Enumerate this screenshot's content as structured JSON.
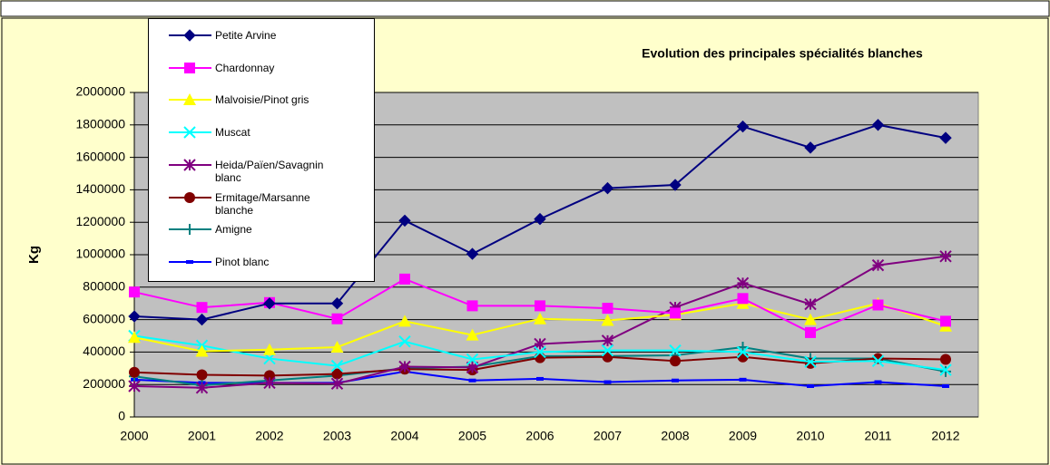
{
  "chart_data": {
    "type": "line",
    "title": "Evolution des principales spécialités blanches",
    "y_label": "Kg",
    "x": [
      "2000",
      "2001",
      "2002",
      "2003",
      "2004",
      "2005",
      "2006",
      "2007",
      "2008",
      "2009",
      "2010",
      "2011",
      "2012"
    ],
    "ylim": [
      0,
      2000000
    ],
    "yticks": [
      0,
      200000,
      400000,
      600000,
      800000,
      1000000,
      1200000,
      1400000,
      1600000,
      1800000,
      2000000
    ],
    "grid": true,
    "series": [
      {
        "name": "Petite Arvine",
        "color": "#000080",
        "marker": "diamond",
        "values": [
          620000,
          600000,
          700000,
          700000,
          1210000,
          1005000,
          1220000,
          1410000,
          1430000,
          1790000,
          1660000,
          1800000,
          1720000
        ]
      },
      {
        "name": "Chardonnay",
        "color": "#ff00ff",
        "marker": "square",
        "values": [
          770000,
          675000,
          705000,
          605000,
          850000,
          685000,
          685000,
          670000,
          640000,
          730000,
          520000,
          690000,
          590000
        ]
      },
      {
        "name": "Malvoisie/Pinot gris",
        "color": "#ffff00",
        "marker": "triangle",
        "values": [
          490000,
          405000,
          415000,
          430000,
          590000,
          505000,
          605000,
          595000,
          630000,
          700000,
          600000,
          700000,
          560000
        ]
      },
      {
        "name": "Muscat",
        "color": "#00ffff",
        "marker": "x",
        "values": [
          500000,
          440000,
          360000,
          315000,
          465000,
          355000,
          400000,
          410000,
          410000,
          400000,
          340000,
          345000,
          290000
        ]
      },
      {
        "name": "Heida/Païen/Savagnin blanc",
        "color": "#800080",
        "marker": "star",
        "values": [
          190000,
          180000,
          210000,
          205000,
          310000,
          305000,
          450000,
          470000,
          675000,
          825000,
          695000,
          935000,
          990000
        ]
      },
      {
        "name": "Ermitage/Marsanne blanche",
        "color": "#800000",
        "marker": "circle",
        "values": [
          275000,
          260000,
          255000,
          265000,
          295000,
          290000,
          365000,
          370000,
          345000,
          370000,
          330000,
          360000,
          355000
        ]
      },
      {
        "name": "Amigne",
        "color": "#008080",
        "marker": "plus",
        "values": [
          250000,
          195000,
          225000,
          255000,
          300000,
          310000,
          375000,
          375000,
          380000,
          430000,
          360000,
          360000,
          280000
        ]
      },
      {
        "name": "Pinot blanc",
        "color": "#0000ff",
        "marker": "dash",
        "values": [
          230000,
          210000,
          210000,
          210000,
          280000,
          225000,
          235000,
          215000,
          225000,
          230000,
          190000,
          215000,
          190000
        ]
      }
    ]
  }
}
